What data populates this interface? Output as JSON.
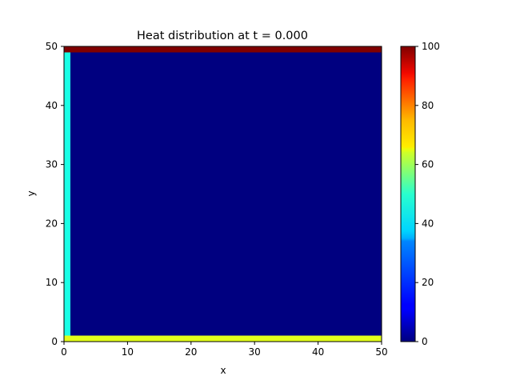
{
  "chart_data": {
    "type": "heatmap",
    "title": "Heat distribution at t = 0.000",
    "xlabel": "x",
    "ylabel": "y",
    "xlim": [
      0,
      50
    ],
    "ylim": [
      0,
      50
    ],
    "x_ticks": [
      0,
      10,
      20,
      30,
      40,
      50
    ],
    "y_ticks": [
      0,
      10,
      20,
      30,
      40,
      50
    ],
    "grid": false,
    "colormap": "jet",
    "colorbar": {
      "min": 0,
      "max": 100,
      "ticks": [
        0,
        20,
        40,
        60,
        80,
        100
      ],
      "placement": "right"
    },
    "regions": [
      {
        "name": "interior",
        "x": [
          1,
          50
        ],
        "y": [
          1,
          49
        ],
        "value": 0
      },
      {
        "name": "top-boundary",
        "x": [
          0,
          50
        ],
        "y": [
          49,
          50
        ],
        "value": 100
      },
      {
        "name": "left-boundary",
        "x": [
          0,
          1
        ],
        "y": [
          1,
          49
        ],
        "value": 40
      },
      {
        "name": "bottom-boundary",
        "x": [
          0,
          50
        ],
        "y": [
          0,
          1
        ],
        "value": 60
      }
    ]
  }
}
